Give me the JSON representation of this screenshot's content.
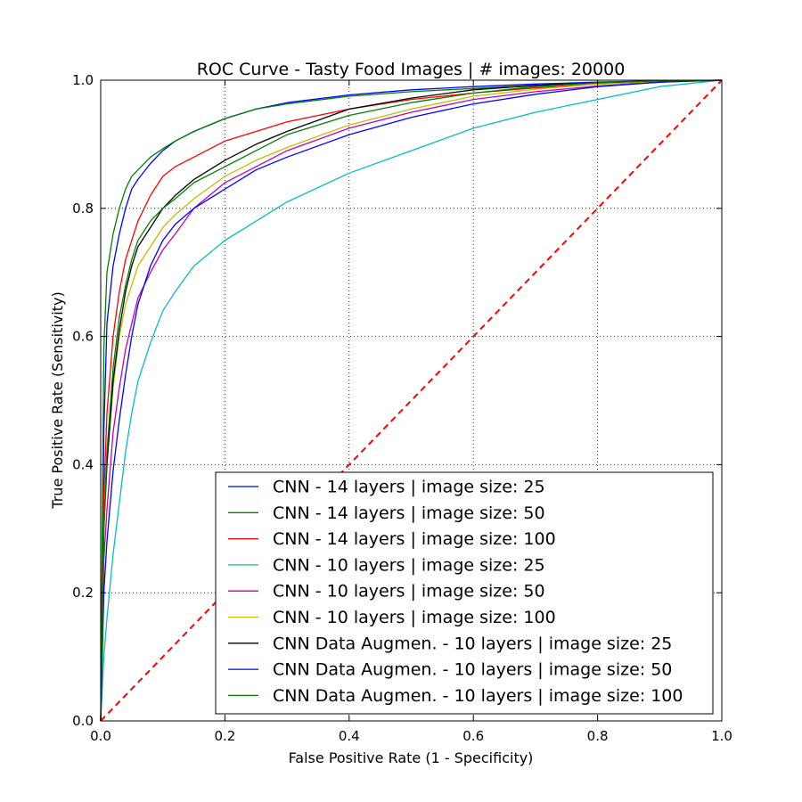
{
  "chart_data": {
    "type": "line",
    "title": "ROC Curve - Tasty Food Images | # images: 20000",
    "xlabel": "False Positive Rate (1 - Specificity)",
    "ylabel": "True Positive Rate (Sensitivity)",
    "xlim": [
      0.0,
      1.0
    ],
    "ylim": [
      0.0,
      1.0
    ],
    "xticks": [
      "0.0",
      "0.2",
      "0.4",
      "0.6",
      "0.8",
      "1.0"
    ],
    "yticks": [
      "0.0",
      "0.2",
      "0.4",
      "0.6",
      "0.8",
      "1.0"
    ],
    "grid": true,
    "grid_style": "dotted",
    "legend_position": "lower-right",
    "series": [
      {
        "name": "CNN - 14 layers | image size: 25",
        "color": "#0000ff",
        "x": [
          0,
          0.005,
          0.01,
          0.02,
          0.03,
          0.04,
          0.05,
          0.06,
          0.08,
          0.1,
          0.12,
          0.15,
          0.2,
          0.25,
          0.3,
          0.4,
          0.5,
          0.6,
          0.7,
          0.8,
          0.9,
          1.0
        ],
        "y": [
          0,
          0.45,
          0.62,
          0.71,
          0.76,
          0.8,
          0.83,
          0.845,
          0.87,
          0.89,
          0.905,
          0.92,
          0.94,
          0.955,
          0.965,
          0.977,
          0.985,
          0.99,
          0.994,
          0.997,
          0.999,
          1.0
        ]
      },
      {
        "name": "CNN - 14 layers | image size: 50",
        "color": "#008000",
        "x": [
          0,
          0.005,
          0.01,
          0.02,
          0.03,
          0.04,
          0.05,
          0.06,
          0.08,
          0.1,
          0.12,
          0.15,
          0.2,
          0.25,
          0.3,
          0.4,
          0.5,
          0.6,
          0.7,
          0.8,
          0.9,
          1.0
        ],
        "y": [
          0,
          0.58,
          0.7,
          0.76,
          0.8,
          0.83,
          0.85,
          0.86,
          0.88,
          0.893,
          0.905,
          0.92,
          0.94,
          0.955,
          0.963,
          0.975,
          0.982,
          0.987,
          0.992,
          0.996,
          0.999,
          1.0
        ]
      },
      {
        "name": "CNN - 14 layers | image size: 100",
        "color": "#ff0000",
        "x": [
          0,
          0.005,
          0.01,
          0.02,
          0.03,
          0.04,
          0.05,
          0.06,
          0.08,
          0.1,
          0.12,
          0.15,
          0.2,
          0.25,
          0.3,
          0.4,
          0.5,
          0.6,
          0.7,
          0.8,
          0.9,
          1.0
        ],
        "y": [
          0,
          0.35,
          0.48,
          0.6,
          0.67,
          0.72,
          0.75,
          0.78,
          0.82,
          0.85,
          0.865,
          0.88,
          0.905,
          0.92,
          0.935,
          0.955,
          0.97,
          0.98,
          0.988,
          0.994,
          0.998,
          1.0
        ]
      },
      {
        "name": "CNN - 10 layers | image size: 25",
        "color": "#00bfbf",
        "x": [
          0,
          0.005,
          0.01,
          0.02,
          0.03,
          0.04,
          0.05,
          0.06,
          0.08,
          0.1,
          0.12,
          0.15,
          0.2,
          0.25,
          0.3,
          0.4,
          0.5,
          0.6,
          0.7,
          0.8,
          0.9,
          1.0
        ],
        "y": [
          0,
          0.1,
          0.16,
          0.26,
          0.34,
          0.42,
          0.48,
          0.53,
          0.59,
          0.64,
          0.67,
          0.71,
          0.75,
          0.78,
          0.81,
          0.855,
          0.89,
          0.925,
          0.95,
          0.97,
          0.99,
          1.0
        ]
      },
      {
        "name": "CNN - 10 layers | image size: 50",
        "color": "#bf00bf",
        "x": [
          0,
          0.005,
          0.01,
          0.02,
          0.03,
          0.04,
          0.05,
          0.06,
          0.08,
          0.1,
          0.12,
          0.15,
          0.2,
          0.25,
          0.3,
          0.4,
          0.5,
          0.6,
          0.7,
          0.8,
          0.9,
          1.0
        ],
        "y": [
          0,
          0.25,
          0.33,
          0.45,
          0.52,
          0.58,
          0.62,
          0.66,
          0.7,
          0.735,
          0.76,
          0.8,
          0.84,
          0.865,
          0.89,
          0.925,
          0.95,
          0.97,
          0.982,
          0.991,
          0.997,
          1.0
        ]
      },
      {
        "name": "CNN - 10 layers | image size: 100",
        "color": "#bfbf00",
        "x": [
          0,
          0.005,
          0.01,
          0.02,
          0.03,
          0.04,
          0.05,
          0.06,
          0.08,
          0.1,
          0.12,
          0.15,
          0.2,
          0.25,
          0.3,
          0.4,
          0.5,
          0.6,
          0.7,
          0.8,
          0.9,
          1.0
        ],
        "y": [
          0,
          0.3,
          0.4,
          0.52,
          0.6,
          0.65,
          0.68,
          0.71,
          0.74,
          0.77,
          0.79,
          0.815,
          0.85,
          0.875,
          0.895,
          0.93,
          0.955,
          0.975,
          0.986,
          0.994,
          0.998,
          1.0
        ]
      },
      {
        "name": "CNN Data Augmen. - 10 layers | image size: 25",
        "color": "#000000",
        "x": [
          0,
          0.005,
          0.01,
          0.02,
          0.03,
          0.04,
          0.05,
          0.06,
          0.08,
          0.1,
          0.12,
          0.15,
          0.2,
          0.25,
          0.3,
          0.4,
          0.5,
          0.6,
          0.7,
          0.8,
          0.9,
          1.0
        ],
        "y": [
          0,
          0.3,
          0.4,
          0.53,
          0.61,
          0.67,
          0.71,
          0.74,
          0.77,
          0.8,
          0.82,
          0.845,
          0.875,
          0.9,
          0.92,
          0.955,
          0.972,
          0.985,
          0.992,
          0.996,
          0.999,
          1.0
        ]
      },
      {
        "name": "CNN Data Augmen. - 10 layers | image size: 50",
        "color": "#0000ff",
        "x": [
          0,
          0.005,
          0.01,
          0.02,
          0.03,
          0.04,
          0.05,
          0.06,
          0.08,
          0.1,
          0.12,
          0.15,
          0.2,
          0.25,
          0.3,
          0.4,
          0.5,
          0.6,
          0.7,
          0.8,
          0.9,
          1.0
        ],
        "y": [
          0,
          0.2,
          0.28,
          0.39,
          0.47,
          0.54,
          0.6,
          0.65,
          0.71,
          0.75,
          0.775,
          0.8,
          0.83,
          0.86,
          0.88,
          0.915,
          0.942,
          0.963,
          0.978,
          0.99,
          0.997,
          1.0
        ]
      },
      {
        "name": "CNN Data Augmen. - 10 layers | image size: 100",
        "color": "#008000",
        "x": [
          0,
          0.005,
          0.01,
          0.02,
          0.03,
          0.04,
          0.05,
          0.06,
          0.08,
          0.1,
          0.12,
          0.15,
          0.2,
          0.25,
          0.3,
          0.4,
          0.5,
          0.6,
          0.7,
          0.8,
          0.9,
          1.0
        ],
        "y": [
          0,
          0.3,
          0.42,
          0.55,
          0.63,
          0.68,
          0.72,
          0.75,
          0.78,
          0.8,
          0.815,
          0.84,
          0.865,
          0.89,
          0.915,
          0.945,
          0.965,
          0.98,
          0.99,
          0.996,
          0.999,
          1.0
        ]
      }
    ],
    "reference_line": {
      "x": [
        0.0,
        1.0
      ],
      "y": [
        0.0,
        1.0
      ],
      "color": "#ff0000",
      "style": "dashed"
    }
  }
}
